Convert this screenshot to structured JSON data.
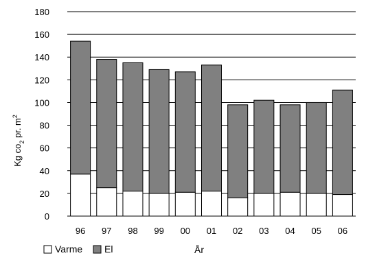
{
  "chart_data": {
    "type": "bar",
    "stacked": true,
    "categories": [
      "96",
      "97",
      "98",
      "99",
      "00",
      "01",
      "02",
      "03",
      "04",
      "05",
      "06"
    ],
    "series": [
      {
        "name": "Varme",
        "color": "#ffffff",
        "values": [
          37,
          25,
          22,
          20,
          21,
          22,
          16,
          20,
          21,
          20,
          19
        ]
      },
      {
        "name": "El",
        "color": "#808080",
        "values": [
          117,
          113,
          113,
          109,
          106,
          111,
          82,
          82,
          77,
          80,
          92
        ]
      }
    ],
    "ylim": [
      0,
      180
    ],
    "yticks": [
      "0",
      "20",
      "40",
      "60",
      "80",
      "100",
      "120",
      "140",
      "160",
      "180"
    ],
    "ylabel_main": "Kg co",
    "ylabel_sub": "2",
    "ylabel_rest": " pr. m",
    "ylabel_sup": "2",
    "xlabel": "År",
    "grid": true,
    "legend": "bottom-left"
  }
}
